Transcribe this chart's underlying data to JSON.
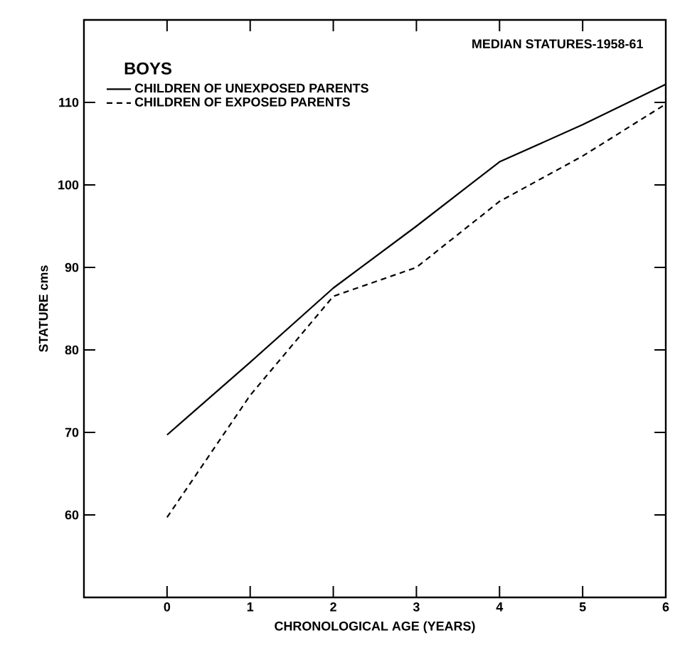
{
  "chart_data": {
    "type": "line",
    "title": "MEDIAN STATURES-1958-61",
    "xlabel": "CHRONOLOGICAL AGE (YEARS)",
    "ylabel": "STATURE cms",
    "legend_title": "BOYS",
    "legend": "top left",
    "grid": false,
    "x": [
      0,
      1,
      2,
      3,
      4,
      5,
      6
    ],
    "xlim": [
      -1,
      6
    ],
    "ylim": [
      50,
      120
    ],
    "xticks": [
      0,
      1,
      2,
      3,
      4,
      5,
      6
    ],
    "yticks": [
      60,
      70,
      80,
      90,
      100,
      110
    ],
    "series": [
      {
        "name": "CHILDREN OF UNEXPOSED PARENTS",
        "color": "#000000",
        "line_style": "solid",
        "values": [
          69.7,
          78.5,
          87.5,
          95,
          102.8,
          107.3,
          112.2
        ]
      },
      {
        "name": "CHILDREN OF EXPOSED PARENTS",
        "color": "#000000",
        "line_style": "dashed",
        "values": [
          59.7,
          74.5,
          86.5,
          90,
          98,
          103.5,
          109.8
        ]
      }
    ]
  }
}
